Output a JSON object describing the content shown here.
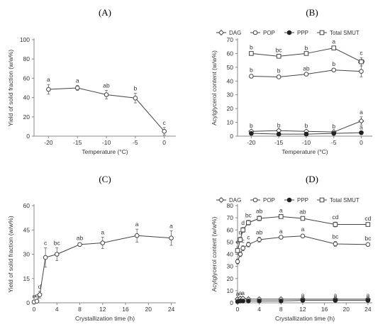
{
  "chart_data": [
    {
      "panel": "(A)",
      "type": "line",
      "xlabel": "Temperature (°C)",
      "ylabel": "Yield of solid fraction (w/w%)",
      "xlim": [
        -22.5,
        2
      ],
      "ylim": [
        0,
        100
      ],
      "xticks": [
        -20,
        -15,
        -10,
        -5,
        0
      ],
      "yticks": [
        0,
        20,
        40,
        60,
        80,
        100
      ],
      "x": [
        -20,
        -15,
        -10,
        -5,
        0
      ],
      "series": [
        {
          "name": "",
          "marker": "open-circle",
          "values": [
            48.5,
            50,
            43,
            39.5,
            5
          ],
          "errors": [
            5,
            2.5,
            4.5,
            5,
            4
          ],
          "labels": [
            "a",
            "a",
            "ab",
            "b",
            "c"
          ]
        }
      ]
    },
    {
      "panel": "(B)",
      "type": "line",
      "xlabel": "Temperature (°C)",
      "ylabel": "Acylglycerol content (w/w%)",
      "xlim": [
        -22.5,
        2
      ],
      "ylim": [
        0,
        70
      ],
      "xticks": [
        -20,
        -15,
        -10,
        -5,
        0
      ],
      "yticks": [
        0,
        10,
        20,
        30,
        40,
        50,
        60,
        70
      ],
      "legend": "top",
      "x": [
        -20,
        -15,
        -10,
        -5,
        0
      ],
      "series": [
        {
          "name": "DAG",
          "marker": "open-diamond",
          "values": [
            3.5,
            4,
            3.5,
            3,
            11
          ],
          "errors": [
            0.5,
            0.5,
            0.5,
            0.5,
            3
          ],
          "labels": [
            "b",
            "b",
            "b",
            "b",
            "a"
          ]
        },
        {
          "name": "POP",
          "marker": "open-circle",
          "values": [
            43.5,
            43,
            45,
            48,
            47
          ],
          "errors": [
            1,
            1,
            0.5,
            1,
            4
          ],
          "labels": [
            "b",
            "b",
            "ab",
            "b",
            "ab"
          ]
        },
        {
          "name": "PPP",
          "marker": "filled-circle",
          "values": [
            2,
            1.5,
            1.5,
            2,
            2.5
          ],
          "errors": [
            0.3,
            0.3,
            0.3,
            0.3,
            0.3
          ],
          "labels": [
            "",
            "",
            "",
            "",
            "a"
          ]
        },
        {
          "name": "Total SMUT",
          "marker": "open-square",
          "values": [
            60,
            58,
            60,
            64,
            54
          ],
          "errors": [
            1,
            1,
            0.5,
            1,
            3
          ],
          "labels": [
            "b",
            "bc",
            "b",
            "a",
            "c"
          ]
        }
      ]
    },
    {
      "panel": "(C)",
      "type": "line",
      "xlabel": "Crystallization time (h)",
      "ylabel": "Yield of solid fraction (w/w%)",
      "xlim": [
        0,
        24.8
      ],
      "ylim": [
        0,
        60
      ],
      "xticks": [
        0,
        4,
        8,
        12,
        16,
        20,
        24
      ],
      "yticks": [
        0,
        15,
        30,
        45,
        60
      ],
      "x": [
        0,
        0.5,
        1,
        2,
        4,
        8,
        12,
        18,
        24
      ],
      "series": [
        {
          "name": "",
          "marker": "open-circle",
          "values": [
            0.5,
            1,
            5,
            28,
            30,
            36,
            37,
            41.5,
            40
          ],
          "errors": [
            0.5,
            0.5,
            2,
            6,
            4,
            1,
            3.5,
            4,
            4.5
          ],
          "labels": [
            "e",
            "e",
            "d",
            "c",
            "bc",
            "ab",
            "a",
            "a",
            "a"
          ]
        }
      ]
    },
    {
      "panel": "(D)",
      "type": "line",
      "xlabel": "Crystallization time (h)",
      "ylabel": "Acylglycerol content (w/w%)",
      "xlim": [
        0,
        24.8
      ],
      "ylim": [
        0,
        80
      ],
      "xticks": [
        0,
        4,
        8,
        12,
        16,
        20,
        24
      ],
      "yticks": [
        0,
        10,
        20,
        30,
        40,
        50,
        60,
        70,
        80
      ],
      "legend": "top",
      "x": [
        0,
        0.5,
        1,
        2,
        4,
        8,
        12,
        18,
        24
      ],
      "series": [
        {
          "name": "DAG",
          "marker": "open-diamond",
          "values": [
            3,
            3.5,
            3.5,
            3,
            3,
            3,
            3,
            3,
            3
          ],
          "errors": [
            0.5,
            0.5,
            0.5,
            0.5,
            0.5,
            0.5,
            0.5,
            0.5,
            0.5
          ],
          "labels": [
            "a",
            "a",
            "a",
            "",
            "",
            "",
            "",
            "",
            ""
          ]
        },
        {
          "name": "POP",
          "marker": "open-circle",
          "values": [
            34,
            40,
            45,
            48,
            52,
            54,
            55,
            48.5,
            48
          ],
          "errors": [
            2,
            2,
            2,
            2,
            2,
            1,
            1.5,
            2,
            1
          ],
          "labels": [
            "",
            "",
            "c",
            "c",
            "ab",
            "a",
            "a",
            "bc",
            "bc"
          ]
        },
        {
          "name": "PPP",
          "marker": "filled-circle",
          "values": [
            1,
            1.5,
            1.5,
            1.5,
            1.5,
            1.5,
            2,
            2,
            2
          ],
          "errors": [
            0.3,
            0.3,
            0.3,
            0.3,
            0.3,
            0.3,
            0.3,
            0.3,
            0.3
          ],
          "labels": [
            "",
            "",
            "",
            "",
            "",
            "",
            "a",
            "a",
            "a"
          ]
        },
        {
          "name": "Total SMUT",
          "marker": "open-square",
          "values": [
            43,
            52,
            60,
            66,
            69.5,
            71,
            69.5,
            64.5,
            64.5
          ],
          "errors": [
            3,
            2,
            2,
            2,
            2,
            1,
            1.5,
            2,
            1
          ],
          "labels": [
            "e",
            "d",
            "d",
            "bc",
            "ab",
            "a",
            "ab",
            "cd",
            "cd"
          ]
        }
      ]
    }
  ]
}
